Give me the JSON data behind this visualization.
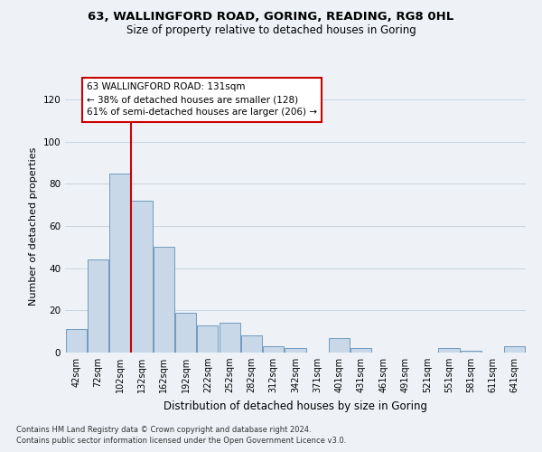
{
  "title_line1": "63, WALLINGFORD ROAD, GORING, READING, RG8 0HL",
  "title_line2": "Size of property relative to detached houses in Goring",
  "xlabel": "Distribution of detached houses by size in Goring",
  "ylabel": "Number of detached properties",
  "footnote1": "Contains HM Land Registry data © Crown copyright and database right 2024.",
  "footnote2": "Contains public sector information licensed under the Open Government Licence v3.0.",
  "categories": [
    "42sqm",
    "72sqm",
    "102sqm",
    "132sqm",
    "162sqm",
    "192sqm",
    "222sqm",
    "252sqm",
    "282sqm",
    "312sqm",
    "342sqm",
    "371sqm",
    "401sqm",
    "431sqm",
    "461sqm",
    "491sqm",
    "521sqm",
    "551sqm",
    "581sqm",
    "611sqm",
    "641sqm"
  ],
  "values": [
    11,
    44,
    85,
    72,
    50,
    19,
    13,
    14,
    8,
    3,
    2,
    0,
    7,
    2,
    0,
    0,
    0,
    2,
    1,
    0,
    3
  ],
  "bar_color": "#c8d8e8",
  "bar_edge_color": "#6090b8",
  "vline_color": "#cc0000",
  "vline_x_index": 3,
  "annotation_text": "63 WALLINGFORD ROAD: 131sqm\n← 38% of detached houses are smaller (128)\n61% of semi-detached houses are larger (206) →",
  "annotation_box_facecolor": "#ffffff",
  "annotation_box_edgecolor": "#cc0000",
  "ylim": [
    0,
    120
  ],
  "yticks": [
    0,
    20,
    40,
    60,
    80,
    100,
    120
  ],
  "grid_color": "#c8d4e0",
  "bg_color": "#eef2f6",
  "title1_fontsize": 9.5,
  "title2_fontsize": 8.5,
  "ylabel_fontsize": 8,
  "xlabel_fontsize": 8.5,
  "tick_fontsize": 7,
  "annotation_fontsize": 7.5,
  "footnote_fontsize": 6
}
